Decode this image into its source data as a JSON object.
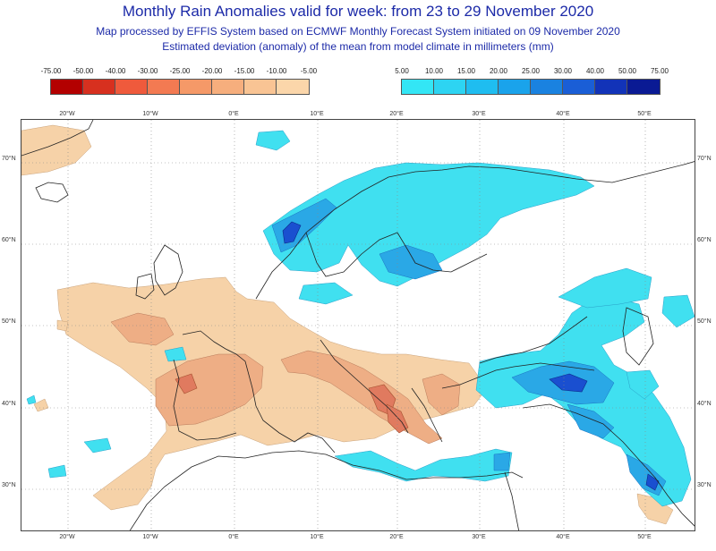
{
  "title": "Monthly Rain Anomalies valid for week: from 23 to 29 November 2020",
  "subtitle1": "Map processed by EFFIS System based on ECMWF Monthly Forecast System initiated on 09 November 2020",
  "subtitle2": "Estimated deviation (anomaly) of the mean from model climate in millimeters (mm)",
  "legend_negative": {
    "labels": [
      "-75.00",
      "-50.00",
      "-40.00",
      "-30.00",
      "-25.00",
      "-20.00",
      "-15.00",
      "-10.00",
      "-5.00"
    ],
    "colors": [
      "#b30000",
      "#d7301f",
      "#ef5a3c",
      "#f37a52",
      "#f59968",
      "#f6ae7d",
      "#f9c494",
      "#fbd6aa"
    ]
  },
  "legend_positive": {
    "labels": [
      "5.00",
      "10.00",
      "15.00",
      "20.00",
      "25.00",
      "30.00",
      "40.00",
      "50.00",
      "75.00"
    ],
    "colors": [
      "#33e6f5",
      "#2dd4f2",
      "#1fbdf0",
      "#1aa3eb",
      "#1a82e0",
      "#1a5ed6",
      "#1233b8",
      "#0a1a94"
    ]
  },
  "map": {
    "longitude_labels": [
      "20°W",
      "10°W",
      "0°E",
      "10°E",
      "20°E",
      "30°E",
      "40°E",
      "50°E"
    ],
    "latitude_labels": [
      "70°N",
      "60°N",
      "50°N",
      "40°N",
      "30°N"
    ],
    "dry_color": "#f6d2a8",
    "dry_strong_color": "#eeae85",
    "dry_core_color": "#e07a5f",
    "wet_color": "#40e0f0",
    "wet_mid_color": "#2aa8e6",
    "wet_core_color": "#1a4fd0"
  }
}
